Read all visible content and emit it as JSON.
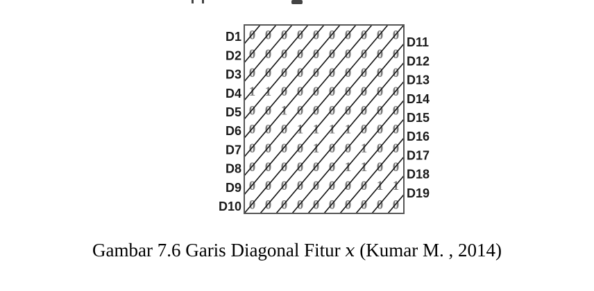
{
  "figure": {
    "grid": [
      [
        0,
        0,
        0,
        0,
        0,
        0,
        0,
        0,
        0,
        0
      ],
      [
        0,
        0,
        0,
        0,
        0,
        0,
        0,
        0,
        0,
        0
      ],
      [
        0,
        0,
        0,
        0,
        0,
        0,
        0,
        0,
        0,
        0
      ],
      [
        1,
        1,
        0,
        0,
        0,
        0,
        0,
        0,
        0,
        0
      ],
      [
        0,
        0,
        1,
        0,
        0,
        0,
        0,
        0,
        0,
        0
      ],
      [
        0,
        0,
        0,
        1,
        1,
        1,
        1,
        0,
        0,
        0
      ],
      [
        0,
        0,
        0,
        0,
        1,
        0,
        0,
        1,
        0,
        0
      ],
      [
        0,
        0,
        0,
        0,
        0,
        0,
        1,
        1,
        0,
        0
      ],
      [
        0,
        0,
        0,
        0,
        0,
        0,
        0,
        0,
        1,
        1
      ],
      [
        0,
        0,
        0,
        0,
        0,
        0,
        0,
        0,
        0,
        0
      ]
    ],
    "left_labels": [
      "D1",
      "D2",
      "D3",
      "D4",
      "D5",
      "D6",
      "D7",
      "D8",
      "D9",
      "D10"
    ],
    "right_labels": [
      "D11",
      "D12",
      "D13",
      "D14",
      "D15",
      "D16",
      "D17",
      "D18",
      "D19"
    ]
  },
  "caption": {
    "prefix": "Gambar 7.6 Garis Diagonal Fitur",
    "variable": "x",
    "suffix": "(Kumar M. , 2014)"
  }
}
